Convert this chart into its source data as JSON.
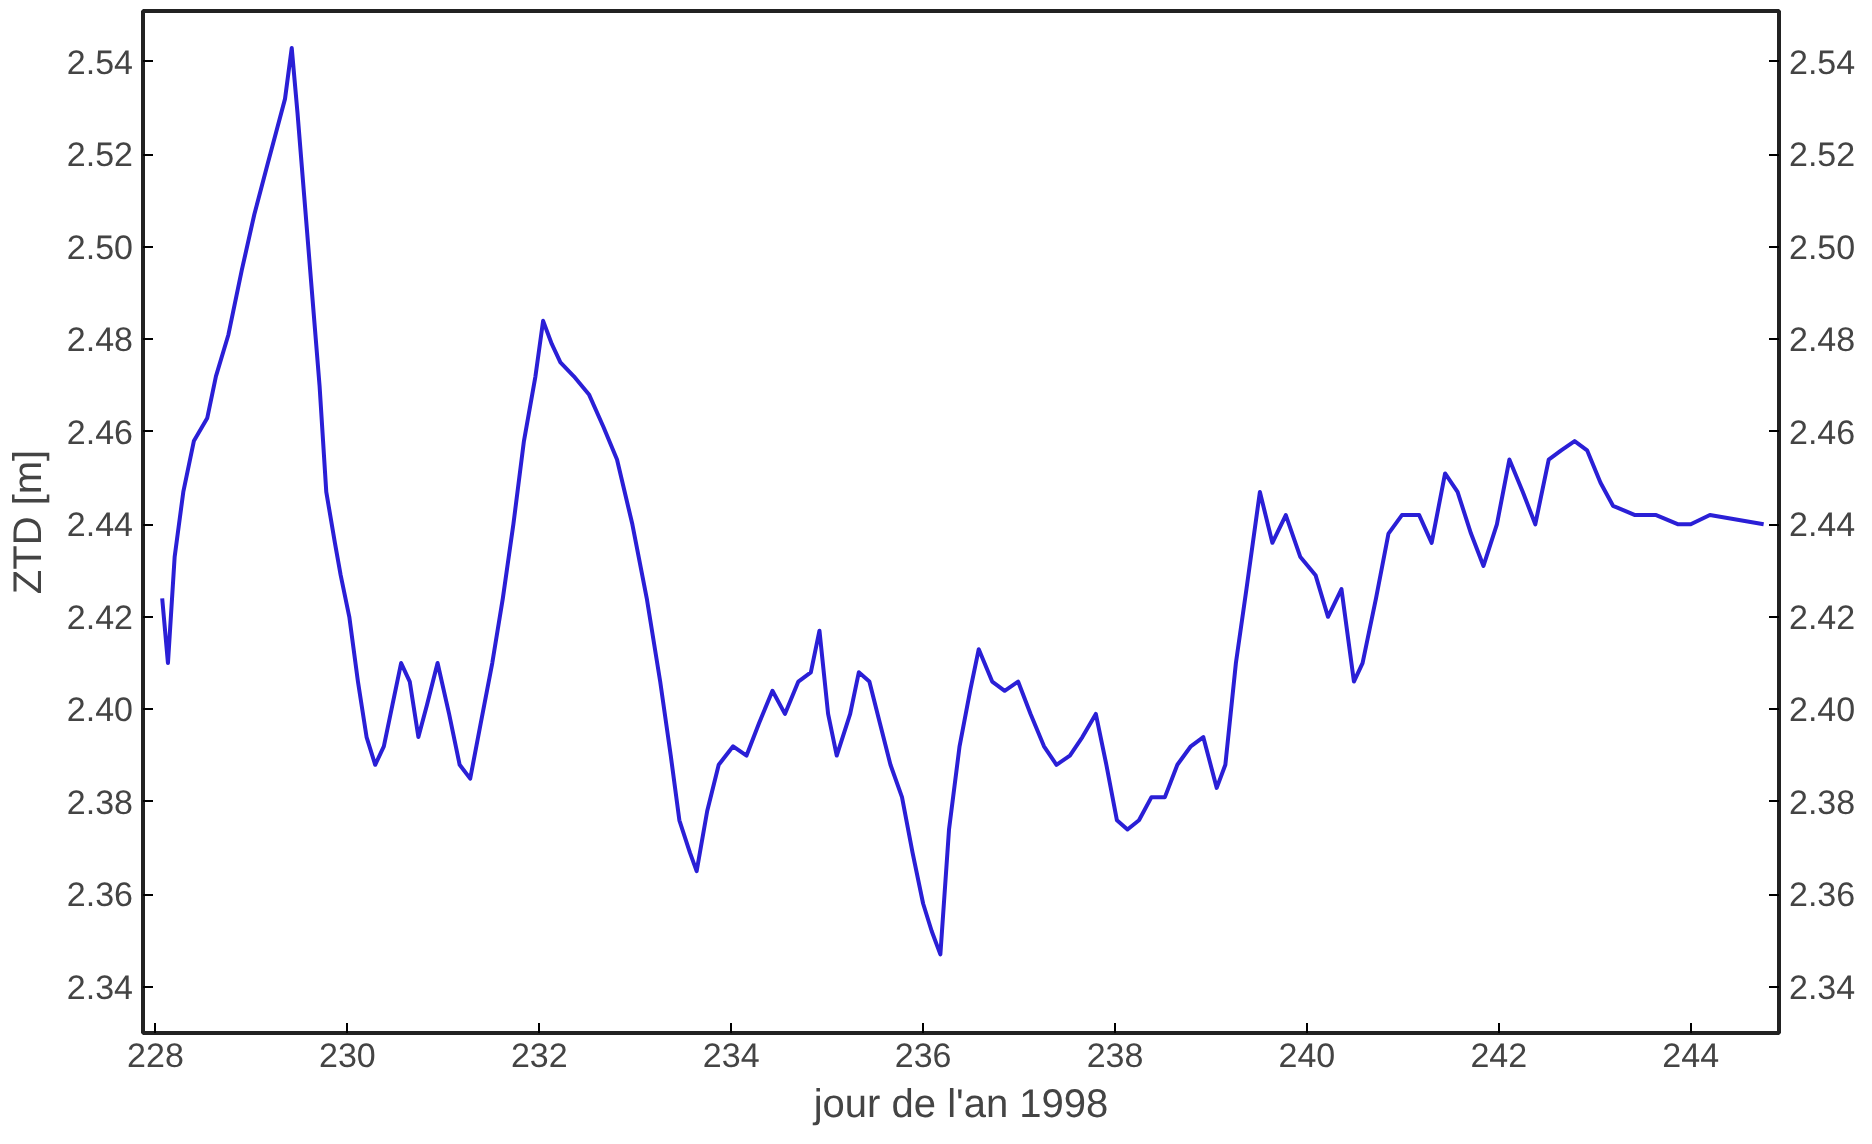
{
  "chart_data": {
    "type": "line",
    "xlabel": "jour de l'an 1998",
    "ylabel": "ZTD [m]",
    "xlim": [
      227.87,
      244.92
    ],
    "xticks": [
      228,
      230,
      232,
      234,
      236,
      238,
      240,
      242,
      244
    ],
    "ylim": [
      2.33,
      2.551
    ],
    "yticks": [
      2.34,
      2.36,
      2.38,
      {
        "value": 2.4,
        "label": "2.40"
      },
      2.42,
      2.44,
      2.46,
      2.48,
      {
        "value": 2.5,
        "label": "2.50"
      },
      2.52,
      2.54
    ],
    "y2lim": [
      2.33,
      2.551
    ],
    "y2ticks": [
      2.34,
      2.36,
      2.38,
      {
        "value": 2.4,
        "label": "2.40"
      },
      2.42,
      2.44,
      2.46,
      2.48,
      {
        "value": 2.5,
        "label": "2.50"
      },
      2.52,
      2.54
    ],
    "grid": false,
    "line_style": "solid",
    "series": [
      {
        "color": "#2a1fd6",
        "x": [
          228.07,
          228.13,
          228.2,
          228.29,
          228.4,
          228.54,
          228.63,
          228.76,
          228.9,
          229.03,
          229.17,
          229.26,
          229.35,
          229.42,
          229.48,
          229.55,
          229.62,
          229.71,
          229.78,
          229.87,
          229.93,
          230.02,
          230.11,
          230.2,
          230.29,
          230.38,
          230.47,
          230.56,
          230.65,
          230.74,
          230.83,
          230.94,
          231.06,
          231.17,
          231.28,
          231.39,
          231.51,
          231.62,
          231.73,
          231.84,
          231.96,
          232.04,
          232.13,
          232.22,
          232.36,
          232.52,
          232.67,
          232.81,
          232.97,
          233.12,
          233.26,
          233.37,
          233.46,
          233.57,
          233.64,
          233.75,
          233.87,
          234.02,
          234.16,
          234.29,
          234.43,
          234.56,
          234.7,
          234.83,
          234.92,
          235.01,
          235.1,
          235.24,
          235.33,
          235.44,
          235.55,
          235.66,
          235.78,
          235.89,
          236.0,
          236.09,
          236.18,
          236.27,
          236.38,
          236.49,
          236.58,
          236.72,
          236.85,
          236.99,
          237.12,
          237.26,
          237.39,
          237.53,
          237.66,
          237.8,
          237.91,
          238.02,
          238.13,
          238.25,
          238.38,
          238.52,
          238.65,
          238.79,
          238.92,
          239.06,
          239.15,
          239.26,
          239.37,
          239.51,
          239.64,
          239.78,
          239.93,
          240.09,
          240.22,
          240.36,
          240.49,
          240.58,
          240.72,
          240.85,
          240.99,
          241.17,
          241.3,
          241.44,
          241.57,
          241.71,
          241.84,
          241.98,
          242.11,
          242.25,
          242.38,
          242.52,
          242.65,
          242.79,
          242.92,
          243.06,
          243.19,
          243.42,
          243.64,
          243.87,
          244.0,
          244.2,
          244.76
        ],
        "values": [
          2.424,
          2.41,
          2.433,
          2.447,
          2.458,
          2.463,
          2.472,
          2.481,
          2.495,
          2.507,
          2.518,
          2.525,
          2.532,
          2.543,
          2.529,
          2.511,
          2.493,
          2.47,
          2.447,
          2.436,
          2.429,
          2.42,
          2.406,
          2.394,
          2.388,
          2.392,
          2.401,
          2.41,
          2.406,
          2.394,
          2.401,
          2.41,
          2.399,
          2.388,
          2.385,
          2.397,
          2.41,
          2.424,
          2.44,
          2.458,
          2.472,
          2.484,
          2.479,
          2.475,
          2.472,
          2.468,
          2.461,
          2.454,
          2.44,
          2.424,
          2.406,
          2.39,
          2.376,
          2.369,
          2.365,
          2.378,
          2.388,
          2.392,
          2.39,
          2.397,
          2.404,
          2.399,
          2.406,
          2.408,
          2.417,
          2.399,
          2.39,
          2.399,
          2.408,
          2.406,
          2.397,
          2.388,
          2.381,
          2.369,
          2.358,
          2.352,
          2.347,
          2.374,
          2.392,
          2.404,
          2.413,
          2.406,
          2.404,
          2.406,
          2.399,
          2.392,
          2.388,
          2.39,
          2.394,
          2.399,
          2.388,
          2.376,
          2.374,
          2.376,
          2.381,
          2.381,
          2.388,
          2.392,
          2.394,
          2.383,
          2.388,
          2.41,
          2.426,
          2.447,
          2.436,
          2.442,
          2.433,
          2.429,
          2.42,
          2.426,
          2.406,
          2.41,
          2.424,
          2.438,
          2.442,
          2.442,
          2.436,
          2.451,
          2.447,
          2.438,
          2.431,
          2.44,
          2.454,
          2.447,
          2.44,
          2.454,
          2.456,
          2.458,
          2.456,
          2.449,
          2.444,
          2.442,
          2.442,
          2.44,
          2.44,
          2.442,
          2.44
        ]
      }
    ]
  }
}
